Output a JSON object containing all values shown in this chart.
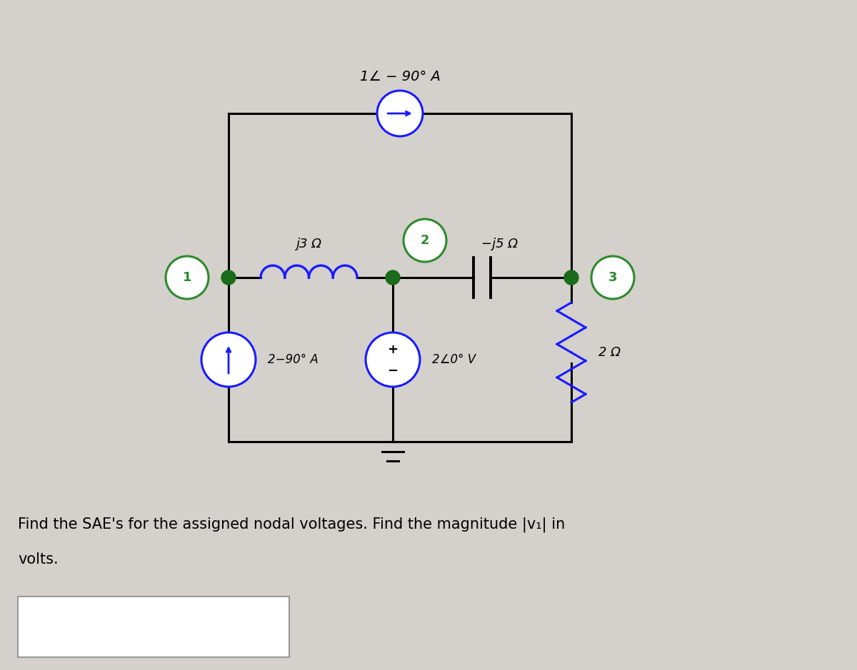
{
  "bg_color": "#d4d0cb",
  "circuit_color": "#000000",
  "node_color": "#2d8a2d",
  "source_color": "#1a1aff",
  "inductor_color": "#1a1aff",
  "resistor_color": "#1a1aff",
  "dot_color": "#1a6b1a",
  "label_j3": "j3 Ω",
  "label_j5": "−j5 Ω",
  "label_2ohm": "2 Ω",
  "label_cs1": "2−90° A",
  "label_vs": "2∠0° V",
  "label_cs_top": "1∠ − 90° A",
  "node1_label": "1",
  "node2_label": "2",
  "node3_label": "3",
  "question_line1": "Find the SAE's for the assigned nodal voltages. Find the magnitude |v₁| in",
  "question_line2": "volts."
}
